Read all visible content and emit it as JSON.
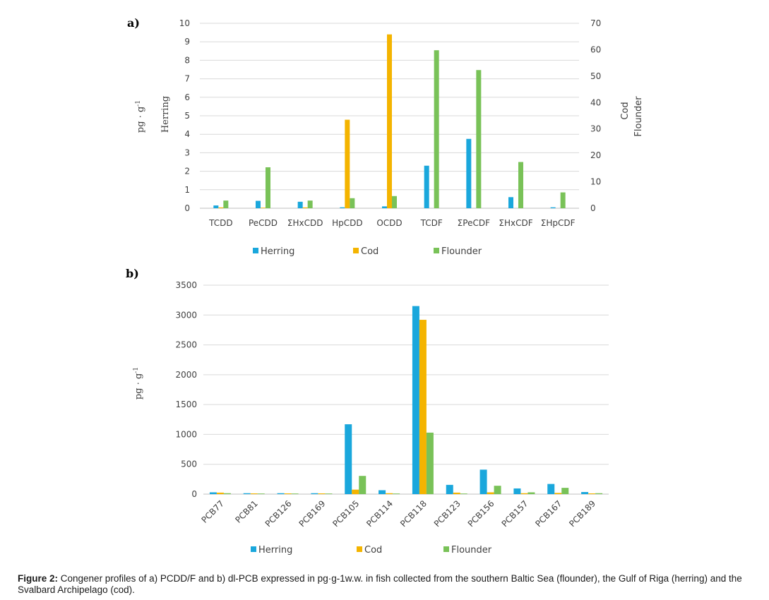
{
  "colors": {
    "Herring": "#1aa7dc",
    "Cod": "#f4b400",
    "Flounder": "#79c258"
  },
  "chart_data": [
    {
      "type": "bar",
      "panel_label": "a)",
      "categories": [
        "TCDD",
        "PeCDD",
        "ΣHxCDD",
        "HpCDD",
        "OCDD",
        "TCDF",
        "ΣPeCDF",
        "ΣHxCDF",
        "ΣHpCDF"
      ],
      "y_left_label_1": "pg · g",
      "y_left_label_sup": "-1",
      "y_left_label_2": "Herring",
      "y_right_label_1": "Cod",
      "y_right_label_2": "Flounder",
      "ylim_left": [
        0,
        10
      ],
      "ylim_right": [
        0,
        70
      ],
      "yticks_left": [
        "0",
        "1",
        "2",
        "3",
        "4",
        "5",
        "6",
        "7",
        "8",
        "9",
        "10"
      ],
      "yticks_right": [
        "0",
        "10",
        "20",
        "30",
        "40",
        "50",
        "60",
        "70"
      ],
      "grid": true,
      "legend_position": "bottom",
      "series": [
        {
          "name": "Herring",
          "axis": "left",
          "values": [
            0.15,
            0.4,
            0.35,
            0.05,
            0.1,
            2.3,
            3.75,
            0.6,
            0.05
          ]
        },
        {
          "name": "Cod",
          "axis": "right",
          "values": [
            0.3,
            0.2,
            0.3,
            33.5,
            65.8,
            0,
            0,
            0,
            0
          ]
        },
        {
          "name": "Flounder",
          "axis": "right",
          "values": [
            2.9,
            15.5,
            2.9,
            3.8,
            4.6,
            59.8,
            52.3,
            17.5,
            6.0
          ]
        }
      ]
    },
    {
      "type": "bar",
      "panel_label": "b)",
      "categories": [
        "PCB77",
        "PCB81",
        "PCB126",
        "PCB169",
        "PCB105",
        "PCB114",
        "PCB118",
        "PCB123",
        "PCB156",
        "PCB157",
        "PCB167",
        "PCB189"
      ],
      "y_label": "pg · g",
      "y_label_sup": "-1",
      "ylim": [
        0,
        3500
      ],
      "yticks": [
        "0",
        "500",
        "1000",
        "1500",
        "2000",
        "2500",
        "3000",
        "3500"
      ],
      "grid": true,
      "legend_position": "bottom",
      "series": [
        {
          "name": "Herring",
          "values": [
            30,
            15,
            15,
            15,
            1170,
            65,
            3150,
            155,
            410,
            95,
            170,
            35
          ]
        },
        {
          "name": "Cod",
          "values": [
            25,
            12,
            12,
            12,
            75,
            15,
            2920,
            25,
            30,
            15,
            20,
            12
          ]
        },
        {
          "name": "Flounder",
          "values": [
            15,
            10,
            10,
            10,
            305,
            10,
            1030,
            10,
            140,
            30,
            105,
            15
          ]
        }
      ]
    }
  ],
  "caption": {
    "label": "Figure 2:",
    "text": " Congener profiles of a) PCDD/F and b) dl-PCB expressed in pg·g-1w.w. in fish collected from the southern Baltic Sea (flounder), the Gulf of Riga (herring) and the Svalbard Archipelago (cod)."
  }
}
